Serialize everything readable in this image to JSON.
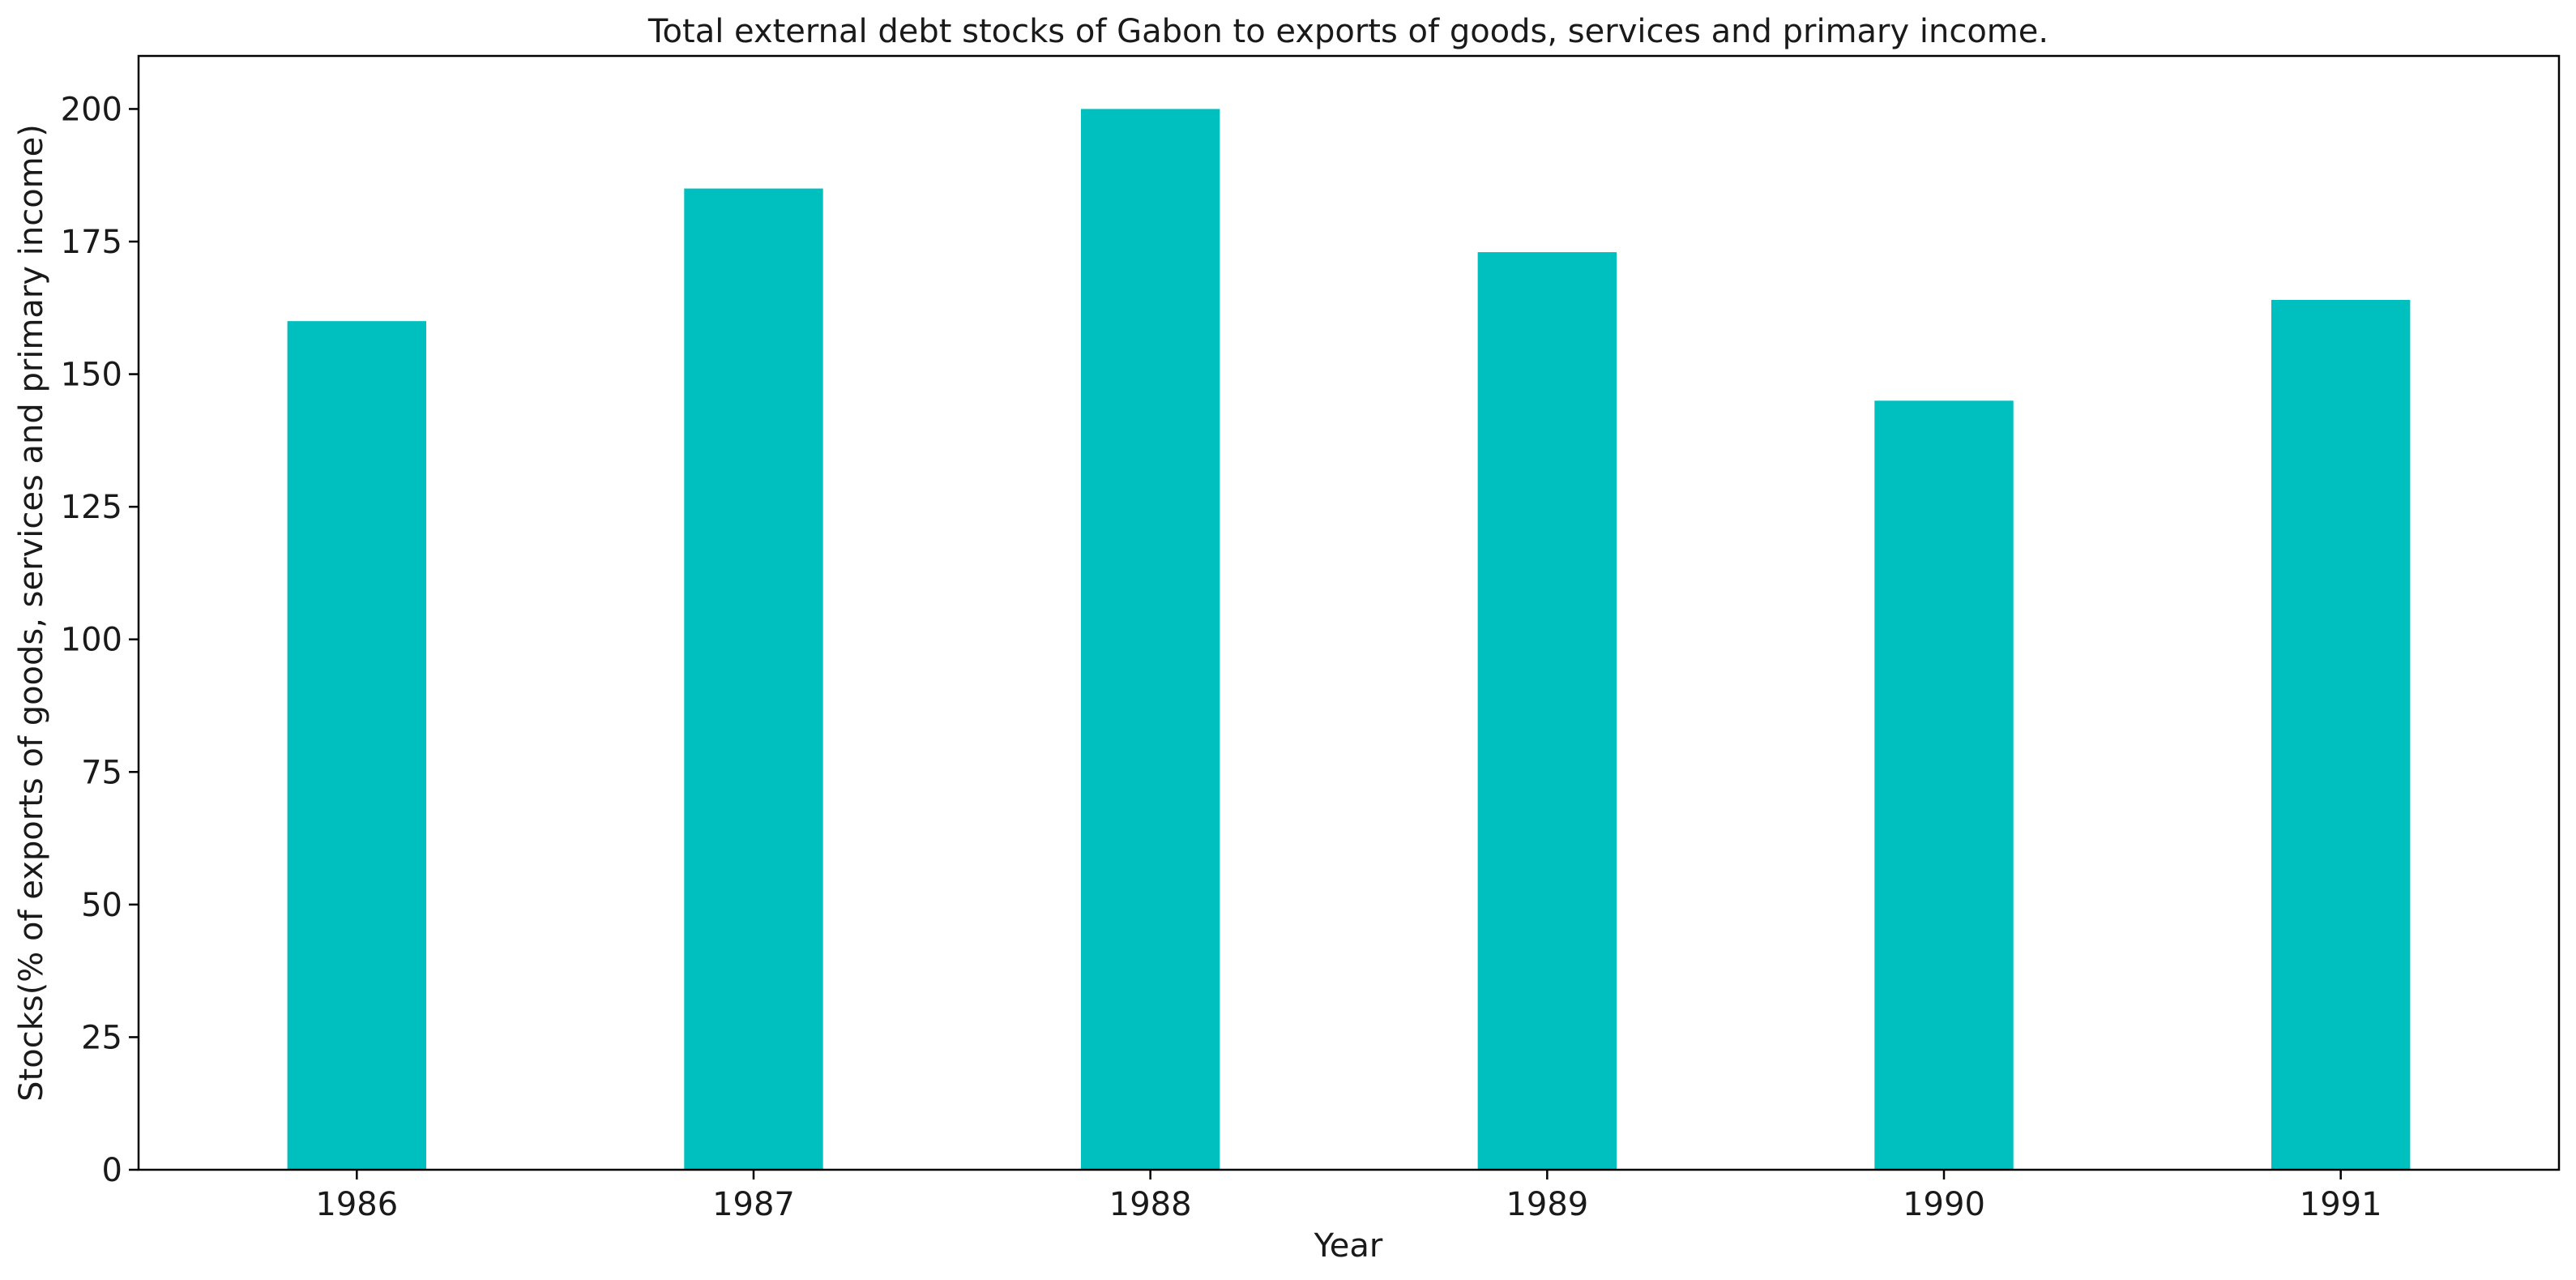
{
  "chart_data": {
    "type": "bar",
    "title": "Total external debt stocks of Gabon to exports of goods, services and primary income.",
    "xlabel": "Year",
    "ylabel": "Stocks(% of exports of goods, services and primary income)",
    "categories": [
      "1986",
      "1987",
      "1988",
      "1989",
      "1990",
      "1991"
    ],
    "values": [
      160,
      185,
      200,
      173,
      145,
      164
    ],
    "ylim": [
      0,
      210
    ],
    "yticks": [
      0,
      25,
      50,
      75,
      100,
      125,
      150,
      175,
      200
    ],
    "bar_color": "#00bfbf",
    "grid": false,
    "legend": "none"
  }
}
